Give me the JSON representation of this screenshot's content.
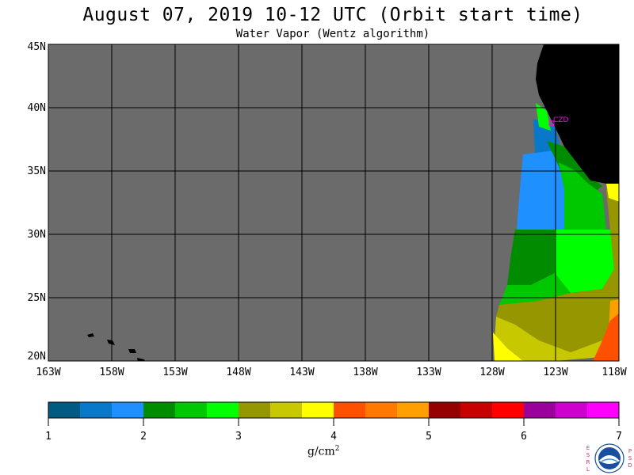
{
  "title": "August 07, 2019  10-12 UTC  (Orbit start time)",
  "subtitle": "Water Vapor (Wentz algorithm)",
  "lat_labels": [
    "45N",
    "40N",
    "35N",
    "30N",
    "25N",
    "20N"
  ],
  "lon_labels": [
    "163W",
    "158W",
    "153W",
    "148W",
    "143W",
    "138W",
    "133W",
    "128W",
    "123W",
    "118W"
  ],
  "station_label": "CZD",
  "colorbar": {
    "ticks": [
      "1",
      "2",
      "3",
      "4",
      "5",
      "6",
      "7"
    ],
    "units_base": "g/cm",
    "units_exp": "2",
    "colors": [
      "#005a82",
      "#0a78c8",
      "#1e90ff",
      "#008c00",
      "#00c800",
      "#00ff00",
      "#969600",
      "#c8c800",
      "#ffff00",
      "#ff5000",
      "#ff7800",
      "#ffa000",
      "#960000",
      "#c80000",
      "#ff0000",
      "#9b009b",
      "#cd00cd",
      "#ff00ff"
    ]
  },
  "colors": {
    "no_data": "#6b6b6b",
    "land": "#000000",
    "grid": "#000000"
  },
  "logo": {
    "left_letters": [
      "E",
      "S",
      "R",
      "L"
    ],
    "right_letters": [
      "P",
      "S",
      "D"
    ],
    "name": "NOAA"
  }
}
